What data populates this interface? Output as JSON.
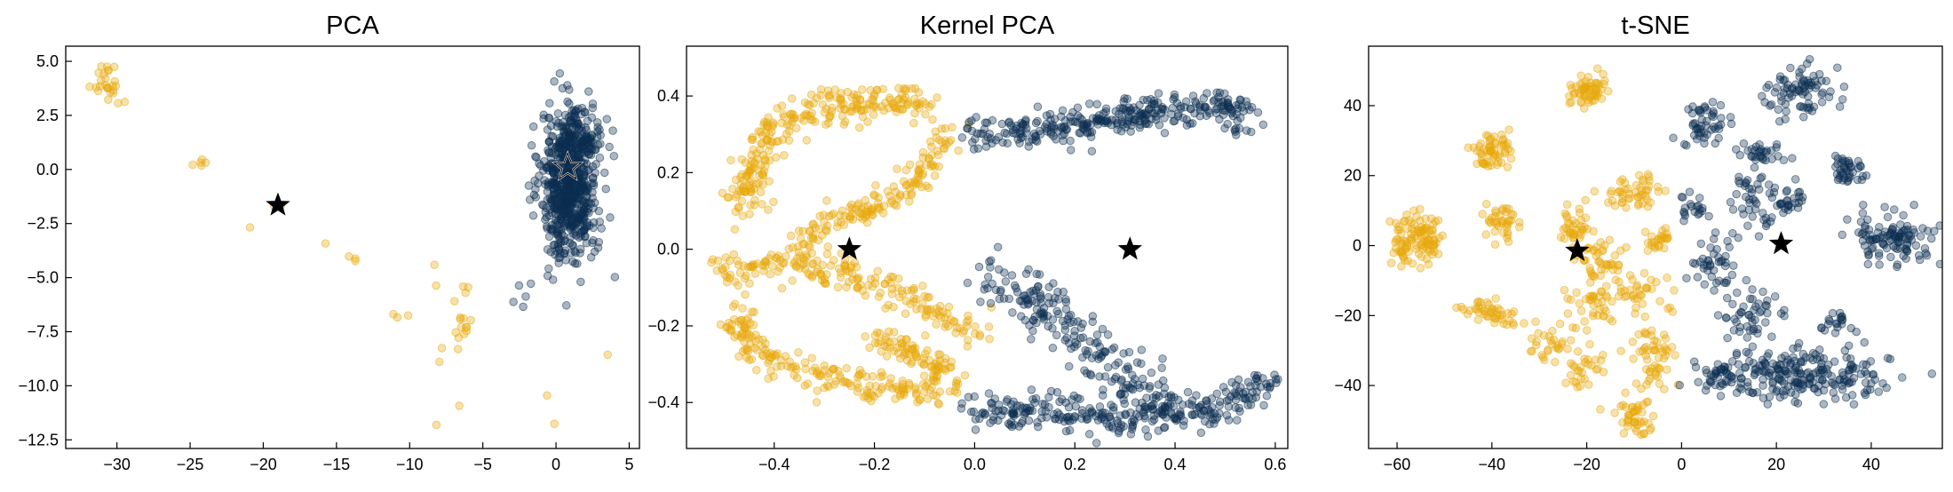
{
  "chart_data": [
    {
      "type": "scatter",
      "title": "PCA",
      "xlabel": "",
      "ylabel": "",
      "xlim": [
        -33.5,
        5.7
      ],
      "ylim": [
        -12.9,
        5.7
      ],
      "xticks": [
        -30,
        -25,
        -20,
        -15,
        -10,
        -5,
        0,
        5
      ],
      "xtick_labels": [
        "−30",
        "−25",
        "−20",
        "−15",
        "−10",
        "−5",
        "0",
        "5"
      ],
      "yticks": [
        5.0,
        2.5,
        0.0,
        -2.5,
        -5.0,
        -7.5,
        -10.0,
        -12.5
      ],
      "ytick_labels": [
        "5.0",
        "2.5",
        "0.0",
        "−2.5",
        "−5.0",
        "−7.5",
        "−10.0",
        "−12.5"
      ],
      "grid": false,
      "clusters": [
        {
          "color": "gold",
          "cx": -30.8,
          "cy": 4.1,
          "sx": 0.6,
          "sy": 0.45,
          "n": 24
        },
        {
          "color": "gold",
          "cx": -29.5,
          "cy": 3.1,
          "sx": 0.2,
          "sy": 0.1,
          "n": 2
        },
        {
          "color": "gold",
          "cx": -24.6,
          "cy": 0.35,
          "sx": 0.5,
          "sy": 0.18,
          "n": 5
        },
        {
          "color": "gold",
          "cx": -19.0,
          "cy": -1.5,
          "sx": 0.4,
          "sy": 0.3,
          "n": 2
        },
        {
          "color": "gold",
          "cx": -21.0,
          "cy": -2.5,
          "sx": 0.1,
          "sy": 0.1,
          "n": 1
        },
        {
          "color": "gold",
          "cx": -14.3,
          "cy": -4.2,
          "sx": 0.6,
          "sy": 0.4,
          "n": 4
        },
        {
          "color": "gold",
          "cx": -10.8,
          "cy": -6.7,
          "sx": 0.4,
          "sy": 0.1,
          "n": 3
        },
        {
          "color": "gold",
          "cx": -8.3,
          "cy": -4.5,
          "sx": 0.1,
          "sy": 0.1,
          "n": 1
        },
        {
          "color": "gold",
          "cx": -7.1,
          "cy": -5.5,
          "sx": 0.5,
          "sy": 0.2,
          "n": 3
        },
        {
          "color": "gold",
          "cx": -6.4,
          "cy": -7.1,
          "sx": 0.3,
          "sy": 0.35,
          "n": 10
        },
        {
          "color": "gold",
          "cx": -7.6,
          "cy": -8.2,
          "sx": 0.5,
          "sy": 0.45,
          "n": 4
        },
        {
          "color": "gold",
          "cx": -6.0,
          "cy": -6.2,
          "sx": 0.4,
          "sy": 0.3,
          "n": 2
        },
        {
          "color": "gold",
          "cx": -6.5,
          "cy": -10.8,
          "sx": 0.1,
          "sy": 0.1,
          "n": 1
        },
        {
          "color": "gold",
          "cx": -8.1,
          "cy": -11.9,
          "sx": 0.1,
          "sy": 0.1,
          "n": 1
        },
        {
          "color": "gold",
          "cx": -0.6,
          "cy": -10.5,
          "sx": 0.1,
          "sy": 0.1,
          "n": 1
        },
        {
          "color": "gold",
          "cx": -0.2,
          "cy": -11.7,
          "sx": 0.1,
          "sy": 0.1,
          "n": 1
        },
        {
          "color": "gold",
          "cx": 3.6,
          "cy": -8.6,
          "sx": 0.1,
          "sy": 0.1,
          "n": 1
        },
        {
          "color": "navy",
          "cx": 0.9,
          "cy": -0.7,
          "sx": 0.95,
          "sy": 1.7,
          "n": 650
        },
        {
          "color": "navy",
          "cx": 1.9,
          "cy": 1.6,
          "sx": 0.7,
          "sy": 0.7,
          "n": 80
        },
        {
          "color": "navy",
          "cx": -2.2,
          "cy": -5.7,
          "sx": 0.5,
          "sy": 0.5,
          "n": 5
        },
        {
          "color": "navy",
          "cx": 3.9,
          "cy": -4.8,
          "sx": 0.1,
          "sy": 0.1,
          "n": 1
        }
      ],
      "centroids": [
        {
          "x": -19.0,
          "y": -1.65,
          "style": "black"
        },
        {
          "x": 0.8,
          "y": 0.1,
          "style": "hollow"
        }
      ]
    },
    {
      "type": "scatter",
      "title": "Kernel PCA",
      "xlabel": "",
      "ylabel": "",
      "xlim": [
        -0.575,
        0.625
      ],
      "ylim": [
        -0.52,
        0.53
      ],
      "xticks": [
        -0.4,
        -0.2,
        0.0,
        0.2,
        0.4,
        0.6
      ],
      "xtick_labels": [
        "−0.4",
        "−0.2",
        "0.0",
        "0.2",
        "0.4",
        "0.6"
      ],
      "yticks": [
        0.4,
        0.2,
        0.0,
        -0.2,
        -0.4
      ],
      "ytick_labels": [
        "0.4",
        "0.2",
        "0.0",
        "−0.2",
        "−0.4"
      ],
      "grid": false,
      "curves": [
        {
          "color": "gold",
          "n": 260,
          "spread": 0.022,
          "points": [
            [
              -0.1,
              0.38
            ],
            [
              -0.2,
              0.38
            ],
            [
              -0.3,
              0.37
            ],
            [
              -0.4,
              0.32
            ],
            [
              -0.45,
              0.2
            ],
            [
              -0.47,
              0.1
            ]
          ]
        },
        {
          "color": "gold",
          "n": 160,
          "spread": 0.018,
          "points": [
            [
              -0.05,
              0.32
            ],
            [
              -0.1,
              0.2
            ],
            [
              -0.2,
              0.1
            ],
            [
              -0.3,
              0.08
            ],
            [
              -0.35,
              -0.02
            ]
          ]
        },
        {
          "color": "gold",
          "n": 200,
          "spread": 0.022,
          "points": [
            [
              -0.52,
              -0.05
            ],
            [
              -0.4,
              -0.04
            ],
            [
              -0.28,
              -0.05
            ],
            [
              -0.15,
              -0.12
            ],
            [
              0.0,
              -0.22
            ]
          ]
        },
        {
          "color": "gold",
          "n": 200,
          "spread": 0.022,
          "points": [
            [
              -0.5,
              -0.15
            ],
            [
              -0.42,
              -0.28
            ],
            [
              -0.3,
              -0.34
            ],
            [
              -0.18,
              -0.36
            ],
            [
              -0.05,
              -0.37
            ]
          ]
        },
        {
          "color": "gold",
          "n": 80,
          "spread": 0.02,
          "points": [
            [
              -0.2,
              -0.22
            ],
            [
              -0.12,
              -0.28
            ],
            [
              -0.05,
              -0.32
            ]
          ]
        },
        {
          "color": "navy",
          "n": 320,
          "spread": 0.022,
          "points": [
            [
              0.0,
              0.3
            ],
            [
              0.12,
              0.31
            ],
            [
              0.25,
              0.33
            ],
            [
              0.38,
              0.36
            ],
            [
              0.5,
              0.38
            ],
            [
              0.55,
              0.32
            ]
          ]
        },
        {
          "color": "navy",
          "n": 200,
          "spread": 0.03,
          "points": [
            [
              0.03,
              -0.07
            ],
            [
              0.1,
              -0.13
            ],
            [
              0.18,
              -0.2
            ],
            [
              0.27,
              -0.3
            ],
            [
              0.38,
              -0.4
            ]
          ]
        },
        {
          "color": "navy",
          "n": 300,
          "spread": 0.024,
          "points": [
            [
              0.0,
              -0.43
            ],
            [
              0.15,
              -0.42
            ],
            [
              0.3,
              -0.43
            ],
            [
              0.45,
              -0.43
            ],
            [
              0.55,
              -0.38
            ],
            [
              0.58,
              -0.33
            ]
          ]
        }
      ],
      "centroids": [
        {
          "x": -0.25,
          "y": 0.0,
          "style": "black"
        },
        {
          "x": 0.31,
          "y": 0.0,
          "style": "black"
        }
      ]
    },
    {
      "type": "scatter",
      "title": "t-SNE",
      "xlabel": "",
      "ylabel": "",
      "xlim": [
        -66,
        55
      ],
      "ylim": [
        -58,
        57
      ],
      "xticks": [
        -60,
        -40,
        -20,
        0,
        20,
        40
      ],
      "xtick_labels": [
        "−60",
        "−40",
        "−20",
        "0",
        "20",
        "40"
      ],
      "yticks": [
        40,
        20,
        0,
        -20,
        -40
      ],
      "ytick_labels": [
        "40",
        "20",
        "0",
        "−20",
        "−40"
      ],
      "grid": false,
      "clusters": [
        {
          "color": "gold",
          "cx": -20,
          "cy": 44,
          "sx": 1.8,
          "sy": 2.2,
          "n": 60
        },
        {
          "color": "gold",
          "cx": -40,
          "cy": 27,
          "sx": 1.8,
          "sy": 2.8,
          "n": 60
        },
        {
          "color": "gold",
          "cx": -56,
          "cy": 2,
          "sx": 2.8,
          "sy": 3.5,
          "n": 110
        },
        {
          "color": "gold",
          "cx": -38,
          "cy": 7,
          "sx": 1.6,
          "sy": 2.4,
          "n": 40
        },
        {
          "color": "gold",
          "cx": -22,
          "cy": 5,
          "sx": 1.6,
          "sy": 3,
          "n": 40
        },
        {
          "color": "gold",
          "cx": -10,
          "cy": 15,
          "sx": 3.5,
          "sy": 2.2,
          "n": 50
        },
        {
          "color": "gold",
          "cx": -5,
          "cy": 1,
          "sx": 1.5,
          "sy": 1.5,
          "n": 25
        },
        {
          "color": "gold",
          "cx": -17,
          "cy": -4,
          "sx": 3,
          "sy": 3,
          "n": 40
        },
        {
          "color": "gold",
          "cx": -8,
          "cy": -13,
          "sx": 4,
          "sy": 3,
          "n": 40
        },
        {
          "color": "gold",
          "cx": -19,
          "cy": -17,
          "sx": 3,
          "sy": 3,
          "n": 35
        },
        {
          "color": "gold",
          "cx": -40,
          "cy": -19,
          "sx": 3.5,
          "sy": 1.5,
          "n": 45
        },
        {
          "color": "gold",
          "cx": -27,
          "cy": -27,
          "sx": 2.5,
          "sy": 3.5,
          "n": 30
        },
        {
          "color": "gold",
          "cx": -21,
          "cy": -35,
          "sx": 2,
          "sy": 3,
          "n": 30
        },
        {
          "color": "gold",
          "cx": -7,
          "cy": -28,
          "sx": 2.5,
          "sy": 3,
          "n": 35
        },
        {
          "color": "gold",
          "cx": -10,
          "cy": -49,
          "sx": 2.5,
          "sy": 2.5,
          "n": 45
        },
        {
          "color": "gold",
          "cx": -5,
          "cy": -37,
          "sx": 2,
          "sy": 2,
          "n": 20
        },
        {
          "color": "navy",
          "cx": 25,
          "cy": 45,
          "sx": 3.5,
          "sy": 3.5,
          "n": 80
        },
        {
          "color": "navy",
          "cx": 5,
          "cy": 35,
          "sx": 2.5,
          "sy": 3.5,
          "n": 50
        },
        {
          "color": "navy",
          "cx": 18,
          "cy": 26,
          "sx": 3,
          "sy": 1.5,
          "n": 30
        },
        {
          "color": "navy",
          "cx": 35,
          "cy": 22,
          "sx": 2.5,
          "sy": 2,
          "n": 40
        },
        {
          "color": "navy",
          "cx": 15,
          "cy": 13,
          "sx": 2,
          "sy": 4,
          "n": 40
        },
        {
          "color": "navy",
          "cx": 23,
          "cy": 13,
          "sx": 2.5,
          "sy": 2,
          "n": 30
        },
        {
          "color": "navy",
          "cx": 44,
          "cy": 2,
          "sx": 4.5,
          "sy": 3.5,
          "n": 110
        },
        {
          "color": "navy",
          "cx": 3,
          "cy": 11,
          "sx": 2,
          "sy": 2,
          "n": 20
        },
        {
          "color": "navy",
          "cx": 7,
          "cy": -5,
          "sx": 3,
          "sy": 4,
          "n": 40
        },
        {
          "color": "navy",
          "cx": 14,
          "cy": -20,
          "sx": 3,
          "sy": 4,
          "n": 50
        },
        {
          "color": "navy",
          "cx": 33,
          "cy": -22,
          "sx": 2,
          "sy": 2,
          "n": 20
        },
        {
          "color": "navy",
          "cx": 25,
          "cy": -37,
          "sx": 9,
          "sy": 3.5,
          "n": 220
        },
        {
          "color": "navy",
          "cx": 8,
          "cy": -37,
          "sx": 3,
          "sy": 2.5,
          "n": 35
        }
      ],
      "centroids": [
        {
          "x": -22,
          "y": -1.5,
          "style": "black"
        },
        {
          "x": 21,
          "y": 0.5,
          "style": "black"
        }
      ]
    }
  ],
  "colors": {
    "gold": "#E8A80C",
    "navy": "#0B2D50",
    "star": "#000000",
    "background": "#ffffff"
  }
}
